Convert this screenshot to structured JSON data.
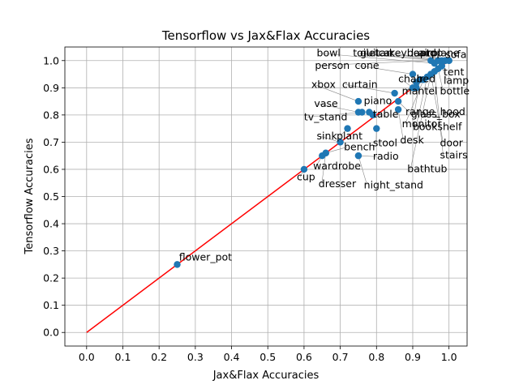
{
  "chart_data": {
    "type": "scatter",
    "title": "Tensorflow vs Jax&Flax Accuracies",
    "xlabel": "Jax&Flax Accuracies",
    "ylabel": "Tensorflow Accuracies",
    "xlim": [
      -0.06,
      1.05
    ],
    "ylim": [
      -0.05,
      1.05
    ],
    "xticks": [
      "0.0",
      "0.1",
      "0.2",
      "0.3",
      "0.4",
      "0.5",
      "0.6",
      "0.7",
      "0.8",
      "0.9",
      "1.0"
    ],
    "yticks": [
      "0.0",
      "0.1",
      "0.2",
      "0.3",
      "0.4",
      "0.5",
      "0.6",
      "0.7",
      "0.8",
      "0.9",
      "1.0"
    ],
    "grid": true,
    "reference_line": {
      "x": [
        0,
        1
      ],
      "y": [
        0,
        1
      ],
      "color": "#ff0000"
    },
    "marker_color": "#1f77b4",
    "points": [
      {
        "label": "flower_pot",
        "x": 0.25,
        "y": 0.25
      },
      {
        "label": "cup",
        "x": 0.6,
        "y": 0.6
      },
      {
        "label": "wardrobe",
        "x": 0.65,
        "y": 0.65
      },
      {
        "label": "bench",
        "x": 0.66,
        "y": 0.66
      },
      {
        "label": "dresser",
        "x": 0.66,
        "y": 0.66
      },
      {
        "label": "sink",
        "x": 0.7,
        "y": 0.7
      },
      {
        "label": "plant",
        "x": 0.72,
        "y": 0.75
      },
      {
        "label": "night_stand",
        "x": 0.75,
        "y": 0.65
      },
      {
        "label": "radio",
        "x": 0.75,
        "y": 0.65
      },
      {
        "label": "vase",
        "x": 0.75,
        "y": 0.81
      },
      {
        "label": "tv_stand",
        "x": 0.76,
        "y": 0.81
      },
      {
        "label": "xbox",
        "x": 0.75,
        "y": 0.85
      },
      {
        "label": "piano",
        "x": 0.78,
        "y": 0.81
      },
      {
        "label": "stool",
        "x": 0.8,
        "y": 0.75
      },
      {
        "label": "table",
        "x": 0.79,
        "y": 0.8
      },
      {
        "label": "curtain",
        "x": 0.85,
        "y": 0.88
      },
      {
        "label": "range_hood",
        "x": 0.86,
        "y": 0.85
      },
      {
        "label": "desk",
        "x": 0.86,
        "y": 0.82
      },
      {
        "label": "cone",
        "x": 0.9,
        "y": 0.95
      },
      {
        "label": "chair",
        "x": 0.9,
        "y": 0.9
      },
      {
        "label": "bed",
        "x": 0.91,
        "y": 0.92
      },
      {
        "label": "mantel",
        "x": 0.91,
        "y": 0.9
      },
      {
        "label": "glass_box",
        "x": 0.92,
        "y": 0.93
      },
      {
        "label": "monitor",
        "x": 0.93,
        "y": 0.93
      },
      {
        "label": "bookshelf",
        "x": 0.94,
        "y": 0.94
      },
      {
        "label": "door",
        "x": 0.95,
        "y": 0.95
      },
      {
        "label": "bathtub",
        "x": 0.95,
        "y": 0.95
      },
      {
        "label": "stairs",
        "x": 0.96,
        "y": 0.96
      },
      {
        "label": "bottle",
        "x": 0.97,
        "y": 0.97
      },
      {
        "label": "lamp",
        "x": 0.98,
        "y": 0.98
      },
      {
        "label": "tent",
        "x": 0.98,
        "y": 0.98
      },
      {
        "label": "person",
        "x": 0.95,
        "y": 1.0
      },
      {
        "label": "bowl",
        "x": 0.96,
        "y": 0.99
      },
      {
        "label": "toilet",
        "x": 0.97,
        "y": 1.0
      },
      {
        "label": "guitar",
        "x": 0.97,
        "y": 1.0
      },
      {
        "label": "keyboard",
        "x": 0.98,
        "y": 1.0
      },
      {
        "label": "airplane",
        "x": 0.99,
        "y": 1.0
      },
      {
        "label": "laptop",
        "x": 0.99,
        "y": 1.0
      },
      {
        "label": "car",
        "x": 1.0,
        "y": 1.0
      },
      {
        "label": "sofa",
        "x": 1.0,
        "y": 1.0
      }
    ],
    "annotations": [
      {
        "text": "flower_pot",
        "at": [
          0.25,
          0.25
        ],
        "text_pos": [
          0.255,
          0.265
        ]
      },
      {
        "text": "cup",
        "at": [
          0.6,
          0.6
        ],
        "text_pos": [
          0.58,
          0.56
        ]
      },
      {
        "text": "wardrobe",
        "at": [
          0.65,
          0.65
        ],
        "text_pos": [
          0.625,
          0.6
        ]
      },
      {
        "text": "dresser",
        "at": [
          0.66,
          0.66
        ],
        "text_pos": [
          0.64,
          0.535
        ]
      },
      {
        "text": "bench",
        "at": [
          0.66,
          0.66
        ],
        "text_pos": [
          0.71,
          0.67
        ]
      },
      {
        "text": "sink",
        "at": [
          0.7,
          0.7
        ],
        "text_pos": [
          0.635,
          0.71
        ]
      },
      {
        "text": "plant",
        "at": [
          0.72,
          0.75
        ],
        "text_pos": [
          0.69,
          0.71
        ]
      },
      {
        "text": "tv_stand",
        "at": [
          0.76,
          0.81
        ],
        "text_pos": [
          0.6,
          0.78
        ]
      },
      {
        "text": "vase",
        "at": [
          0.75,
          0.81
        ],
        "text_pos": [
          0.628,
          0.83
        ]
      },
      {
        "text": "xbox",
        "at": [
          0.75,
          0.85
        ],
        "text_pos": [
          0.62,
          0.9
        ]
      },
      {
        "text": "piano",
        "at": [
          0.78,
          0.81
        ],
        "text_pos": [
          0.765,
          0.84
        ]
      },
      {
        "text": "curtain",
        "at": [
          0.85,
          0.88
        ],
        "text_pos": [
          0.705,
          0.9
        ]
      },
      {
        "text": "person",
        "at": [
          0.95,
          1.0
        ],
        "text_pos": [
          0.63,
          0.97
        ]
      },
      {
        "text": "bowl",
        "at": [
          0.96,
          0.99
        ],
        "text_pos": [
          0.635,
          1.015
        ]
      },
      {
        "text": "cone",
        "at": [
          0.9,
          0.95
        ],
        "text_pos": [
          0.74,
          0.97
        ]
      },
      {
        "text": "toilet",
        "at": [
          0.97,
          1.0
        ],
        "text_pos": [
          0.735,
          1.015
        ]
      },
      {
        "text": "guitar",
        "at": [
          0.97,
          1.0
        ],
        "text_pos": [
          0.755,
          1.015
        ]
      },
      {
        "text": "car",
        "at": [
          1.0,
          1.0
        ],
        "text_pos": [
          0.805,
          1.015
        ]
      },
      {
        "text": "keyboard",
        "at": [
          0.98,
          1.0
        ],
        "text_pos": [
          0.835,
          1.015
        ]
      },
      {
        "text": "laptop",
        "at": [
          0.99,
          1.0
        ],
        "text_pos": [
          0.895,
          1.015
        ]
      },
      {
        "text": "airplane",
        "at": [
          0.99,
          1.0
        ],
        "text_pos": [
          0.915,
          1.015
        ]
      },
      {
        "text": "sofa",
        "at": [
          1.0,
          1.0
        ],
        "text_pos": [
          0.99,
          1.01
        ]
      },
      {
        "text": "tent",
        "at": [
          0.98,
          0.98
        ],
        "text_pos": [
          0.985,
          0.945
        ]
      },
      {
        "text": "lamp",
        "at": [
          0.98,
          0.98
        ],
        "text_pos": [
          0.985,
          0.915
        ]
      },
      {
        "text": "bottle",
        "at": [
          0.97,
          0.97
        ],
        "text_pos": [
          0.975,
          0.875
        ]
      },
      {
        "text": "chair",
        "at": [
          0.9,
          0.9
        ],
        "text_pos": [
          0.86,
          0.92
        ]
      },
      {
        "text": "bed",
        "at": [
          0.91,
          0.92
        ],
        "text_pos": [
          0.91,
          0.92
        ]
      },
      {
        "text": "mantel",
        "at": [
          0.91,
          0.9
        ],
        "text_pos": [
          0.87,
          0.875
        ]
      },
      {
        "text": "table",
        "at": [
          0.79,
          0.8
        ],
        "text_pos": [
          0.79,
          0.79
        ]
      },
      {
        "text": "range_hood",
        "at": [
          0.86,
          0.85
        ],
        "text_pos": [
          0.88,
          0.8
        ]
      },
      {
        "text": "glass_box",
        "at": [
          0.92,
          0.93
        ],
        "text_pos": [
          0.895,
          0.79
        ]
      },
      {
        "text": "monitor",
        "at": [
          0.93,
          0.93
        ],
        "text_pos": [
          0.87,
          0.755
        ]
      },
      {
        "text": "bookshelf",
        "at": [
          0.94,
          0.94
        ],
        "text_pos": [
          0.9,
          0.745
        ]
      },
      {
        "text": "stool",
        "at": [
          0.8,
          0.75
        ],
        "text_pos": [
          0.79,
          0.685
        ]
      },
      {
        "text": "desk",
        "at": [
          0.86,
          0.82
        ],
        "text_pos": [
          0.865,
          0.695
        ]
      },
      {
        "text": "door",
        "at": [
          0.95,
          0.95
        ],
        "text_pos": [
          0.975,
          0.685
        ]
      },
      {
        "text": "radio",
        "at": [
          0.75,
          0.65
        ],
        "text_pos": [
          0.79,
          0.635
        ]
      },
      {
        "text": "stairs",
        "at": [
          0.96,
          0.96
        ],
        "text_pos": [
          0.975,
          0.64
        ]
      },
      {
        "text": "bathtub",
        "at": [
          0.95,
          0.95
        ],
        "text_pos": [
          0.885,
          0.59
        ]
      },
      {
        "text": "night_stand",
        "at": [
          0.75,
          0.65
        ],
        "text_pos": [
          0.765,
          0.53
        ]
      }
    ]
  }
}
